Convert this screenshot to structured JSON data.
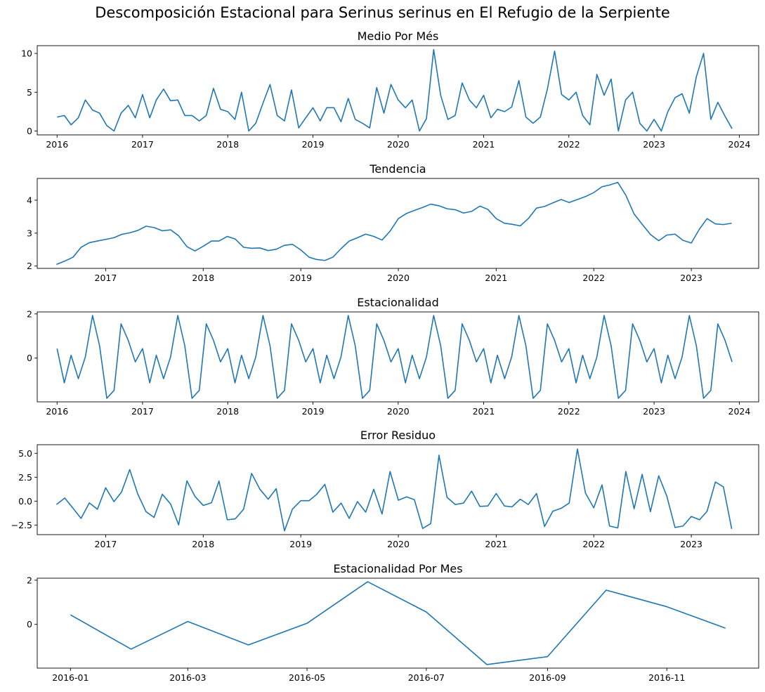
{
  "figure": {
    "title": "Descomposición Estacional para Serinus serinus en El Refugio de la Serpiente"
  },
  "style": {
    "line_color": "#1f77b4",
    "axis_color": "#000000"
  },
  "chart_data": [
    {
      "type": "line",
      "title": "Medio Por Més",
      "x_start": "2016-01",
      "x_step": "month",
      "values": [
        1.8,
        2.0,
        0.8,
        1.7,
        4.0,
        2.7,
        2.3,
        0.7,
        0.0,
        2.3,
        3.3,
        1.7,
        4.7,
        1.7,
        4.0,
        5.4,
        3.9,
        4.0,
        2.0,
        2.0,
        1.3,
        2.0,
        5.5,
        2.8,
        2.5,
        1.5,
        5.0,
        0.0,
        1.0,
        3.6,
        6.0,
        2.0,
        1.3,
        5.3,
        0.4,
        1.7,
        3.0,
        1.3,
        3.0,
        3.0,
        1.2,
        4.2,
        1.5,
        1.0,
        0.4,
        5.6,
        2.3,
        6.0,
        4.0,
        3.0,
        4.0,
        0.0,
        1.6,
        10.5,
        4.6,
        1.5,
        2.0,
        6.2,
        4.0,
        3.0,
        4.6,
        1.7,
        2.8,
        2.5,
        3.1,
        6.5,
        1.8,
        1.0,
        1.8,
        5.4,
        10.3,
        4.7,
        4.0,
        5.0,
        2.0,
        0.8,
        7.3,
        4.6,
        6.7,
        0.0,
        4.0,
        5.0,
        1.0,
        0.0,
        1.5,
        0.0,
        2.5,
        4.3,
        4.8,
        2.3,
        7.0,
        10.0,
        1.5,
        3.7,
        1.9,
        0.3
      ],
      "xlim": [
        "2015-10-08",
        "2024-03-24"
      ],
      "ylim": [
        -0.5,
        11.0
      ],
      "x_ticks": [
        "2016",
        "2017",
        "2018",
        "2019",
        "2020",
        "2021",
        "2022",
        "2023",
        "2024"
      ],
      "y_ticks": [
        "0",
        "5",
        "10"
      ]
    },
    {
      "type": "line",
      "title": "Tendencia",
      "x_start": "2016-07",
      "x_step": "month",
      "values": [
        2.05,
        2.15,
        2.27,
        2.57,
        2.71,
        2.76,
        2.81,
        2.86,
        2.96,
        3.01,
        3.08,
        3.21,
        3.17,
        3.07,
        3.1,
        2.92,
        2.59,
        2.46,
        2.6,
        2.76,
        2.76,
        2.9,
        2.82,
        2.57,
        2.54,
        2.55,
        2.47,
        2.51,
        2.63,
        2.66,
        2.49,
        2.27,
        2.2,
        2.17,
        2.27,
        2.53,
        2.76,
        2.86,
        2.97,
        2.9,
        2.79,
        3.06,
        3.44,
        3.6,
        3.69,
        3.78,
        3.88,
        3.83,
        3.74,
        3.71,
        3.61,
        3.66,
        3.82,
        3.72,
        3.44,
        3.3,
        3.27,
        3.22,
        3.44,
        3.76,
        3.81,
        3.92,
        4.02,
        3.93,
        4.02,
        4.11,
        4.23,
        4.41,
        4.46,
        4.54,
        4.15,
        3.58,
        3.27,
        2.96,
        2.77,
        2.94,
        2.97,
        2.78,
        2.7,
        3.13,
        3.44,
        3.28,
        3.26,
        3.3
      ],
      "xlim": [
        "2016-04-20",
        "2023-09-10"
      ],
      "ylim": [
        1.93,
        4.66
      ],
      "x_ticks": [
        "2017",
        "2018",
        "2019",
        "2020",
        "2021",
        "2022",
        "2023"
      ],
      "y_ticks": [
        "2",
        "3",
        "4"
      ]
    },
    {
      "type": "line",
      "title": "Estacionalidad",
      "x_start": "2016-01",
      "x_step": "month",
      "values": [
        0.43,
        -1.12,
        0.13,
        -0.93,
        0.05,
        1.93,
        0.56,
        -1.82,
        -1.46,
        1.55,
        0.8,
        -0.17
      ],
      "repeat_years": 8,
      "xlim": [
        "2015-10-08",
        "2024-03-24"
      ],
      "ylim": [
        -1.98,
        2.09
      ],
      "x_ticks": [
        "2016",
        "2017",
        "2018",
        "2019",
        "2020",
        "2021",
        "2022",
        "2023",
        "2024"
      ],
      "y_ticks": [
        "0",
        "2"
      ]
    },
    {
      "type": "line",
      "title": "Error Residuo",
      "x_start": "2016-07",
      "x_step": "month",
      "values": [
        -0.35,
        0.33,
        -0.75,
        -1.8,
        -0.18,
        -0.85,
        1.4,
        -0.05,
        0.93,
        3.3,
        0.75,
        -1.1,
        -1.7,
        0.72,
        -0.3,
        -2.48,
        2.12,
        0.5,
        -0.45,
        -0.17,
        2.1,
        -1.95,
        -1.85,
        -0.85,
        2.9,
        1.25,
        0.2,
        1.3,
        -3.1,
        -0.82,
        0.05,
        0.05,
        0.7,
        1.75,
        -1.15,
        -0.2,
        -1.8,
        -0.05,
        -1.15,
        1.25,
        -1.35,
        3.1,
        0.1,
        0.45,
        0.15,
        -2.85,
        -2.35,
        4.8,
        0.4,
        -0.35,
        -0.2,
        1.05,
        -0.55,
        -0.5,
        0.8,
        -0.5,
        -0.6,
        0.2,
        -0.35,
        0.8,
        -2.65,
        -1.05,
        -0.75,
        -0.2,
        5.45,
        0.85,
        -0.7,
        1.7,
        -2.6,
        -2.8,
        3.1,
        -0.8,
        2.8,
        -1.1,
        2.65,
        0.55,
        -2.75,
        -2.6,
        -1.6,
        -1.95,
        -1.05,
        2.0,
        1.5,
        -2.9
      ],
      "xlim": [
        "2016-04-20",
        "2023-09-10"
      ],
      "ylim": [
        -3.5,
        5.9
      ],
      "x_ticks": [
        "2017",
        "2018",
        "2019",
        "2020",
        "2021",
        "2022",
        "2023"
      ],
      "y_ticks": [
        "−2.5",
        "0.0",
        "2.5",
        "5.0"
      ]
    },
    {
      "type": "line",
      "title": "Estacionalidad Por Mes",
      "x_start": "2016-01",
      "x_step": "month",
      "values": [
        0.43,
        -1.12,
        0.13,
        -0.93,
        0.05,
        1.93,
        0.56,
        -1.82,
        -1.46,
        1.55,
        0.8,
        -0.17
      ],
      "xlim": [
        "2015-12-15",
        "2016-12-18"
      ],
      "ylim": [
        -1.98,
        2.09
      ],
      "x_ticks": [
        "2016-01",
        "2016-03",
        "2016-05",
        "2016-07",
        "2016-09",
        "2016-11"
      ],
      "y_ticks": [
        "0",
        "2"
      ]
    }
  ]
}
